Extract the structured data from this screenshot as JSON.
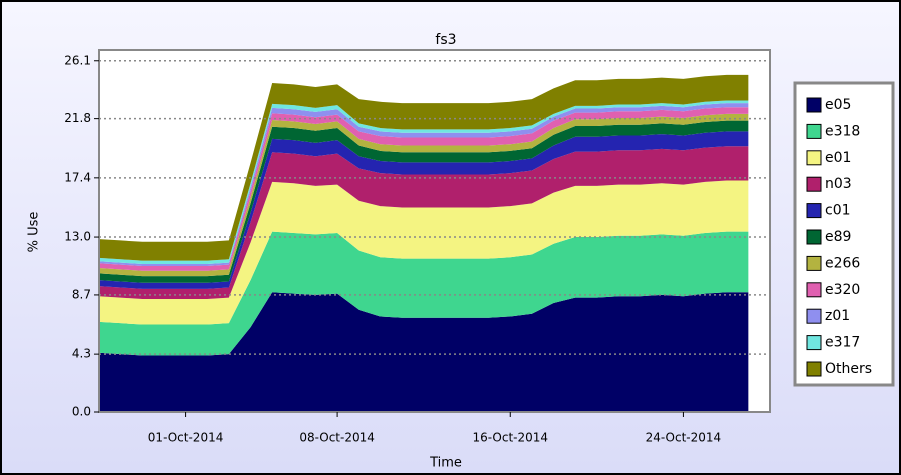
{
  "chart_data": {
    "type": "stacked_area",
    "title": "fs3",
    "xlabel": "Time",
    "ylabel": "% Use",
    "x": [
      "2014-09-27",
      "2014-09-28",
      "2014-09-29",
      "2014-09-30",
      "2014-10-01",
      "2014-10-02",
      "2014-10-03",
      "2014-10-04",
      "2014-10-05",
      "2014-10-06",
      "2014-10-07",
      "2014-10-08",
      "2014-10-09",
      "2014-10-10",
      "2014-10-11",
      "2014-10-12",
      "2014-10-13",
      "2014-10-14",
      "2014-10-15",
      "2014-10-16",
      "2014-10-17",
      "2014-10-18",
      "2014-10-19",
      "2014-10-20",
      "2014-10-21",
      "2014-10-22",
      "2014-10-23",
      "2014-10-24",
      "2014-10-25",
      "2014-10-26",
      "2014-10-27"
    ],
    "xlim": [
      "2014-09-27",
      "2014-10-28"
    ],
    "xticks": [
      {
        "value": "2014-10-01",
        "label": "01-Oct-2014"
      },
      {
        "value": "2014-10-08",
        "label": "08-Oct-2014"
      },
      {
        "value": "2014-10-16",
        "label": "16-Oct-2014"
      },
      {
        "value": "2014-10-24",
        "label": "24-Oct-2014"
      }
    ],
    "ylim": [
      0,
      26.9
    ],
    "yticks": [
      {
        "value": 0,
        "label": "0.0"
      },
      4.3,
      8.7,
      {
        "value": 13,
        "label": "13.0"
      },
      17.4,
      21.8,
      26.1
    ],
    "grid": true,
    "legend": "right",
    "series": [
      {
        "name": "e05",
        "color": "#000066",
        "values": [
          4.4,
          4.3,
          4.2,
          4.2,
          4.2,
          4.2,
          4.3,
          6.3,
          8.9,
          8.8,
          8.7,
          8.8,
          7.6,
          7.1,
          7.0,
          7.0,
          7.0,
          7.0,
          7.0,
          7.1,
          7.3,
          8.1,
          8.5,
          8.5,
          8.6,
          8.6,
          8.7,
          8.6,
          8.8,
          8.9,
          8.9
        ]
      },
      {
        "name": "e318",
        "color": "#3fd68f",
        "values": [
          2.3,
          2.3,
          2.3,
          2.3,
          2.3,
          2.3,
          2.3,
          3.5,
          4.5,
          4.5,
          4.5,
          4.5,
          4.4,
          4.4,
          4.4,
          4.4,
          4.4,
          4.4,
          4.4,
          4.4,
          4.4,
          4.4,
          4.5,
          4.5,
          4.5,
          4.5,
          4.5,
          4.5,
          4.5,
          4.5,
          4.5
        ]
      },
      {
        "name": "e01",
        "color": "#f4f482",
        "values": [
          1.9,
          1.9,
          1.9,
          1.9,
          1.9,
          1.9,
          1.9,
          2.8,
          3.7,
          3.7,
          3.6,
          3.6,
          3.7,
          3.8,
          3.8,
          3.8,
          3.8,
          3.8,
          3.8,
          3.8,
          3.8,
          3.8,
          3.8,
          3.8,
          3.8,
          3.8,
          3.8,
          3.8,
          3.8,
          3.8,
          3.8
        ]
      },
      {
        "name": "n03",
        "color": "#b0206c",
        "values": [
          0.75,
          0.75,
          0.75,
          0.75,
          0.75,
          0.75,
          0.75,
          1.5,
          2.2,
          2.2,
          2.2,
          2.3,
          2.4,
          2.45,
          2.45,
          2.45,
          2.45,
          2.45,
          2.45,
          2.45,
          2.45,
          2.5,
          2.55,
          2.55,
          2.55,
          2.55,
          2.55,
          2.55,
          2.55,
          2.55,
          2.55
        ]
      },
      {
        "name": "c01",
        "color": "#2424b0",
        "values": [
          0.45,
          0.45,
          0.45,
          0.45,
          0.45,
          0.45,
          0.45,
          0.7,
          1.0,
          1.0,
          1.0,
          1.0,
          0.9,
          0.9,
          0.9,
          0.9,
          0.9,
          0.9,
          0.9,
          0.9,
          0.9,
          1.0,
          1.1,
          1.1,
          1.1,
          1.1,
          1.1,
          1.1,
          1.1,
          1.1,
          1.1
        ]
      },
      {
        "name": "e89",
        "color": "#006633",
        "values": [
          0.5,
          0.5,
          0.5,
          0.5,
          0.5,
          0.5,
          0.5,
          0.7,
          0.9,
          0.9,
          0.9,
          0.9,
          0.8,
          0.75,
          0.75,
          0.75,
          0.75,
          0.75,
          0.75,
          0.75,
          0.75,
          0.8,
          0.8,
          0.8,
          0.8,
          0.8,
          0.8,
          0.8,
          0.8,
          0.8,
          0.8
        ]
      },
      {
        "name": "e266",
        "color": "#b3b340",
        "values": [
          0.4,
          0.4,
          0.4,
          0.4,
          0.4,
          0.4,
          0.4,
          0.45,
          0.5,
          0.5,
          0.5,
          0.5,
          0.5,
          0.5,
          0.5,
          0.5,
          0.5,
          0.5,
          0.5,
          0.5,
          0.5,
          0.5,
          0.5,
          0.5,
          0.5,
          0.5,
          0.5,
          0.5,
          0.5,
          0.5,
          0.5
        ]
      },
      {
        "name": "e320",
        "color": "#e060b0",
        "values": [
          0.35,
          0.35,
          0.35,
          0.35,
          0.35,
          0.35,
          0.35,
          0.45,
          0.5,
          0.5,
          0.5,
          0.5,
          0.55,
          0.6,
          0.6,
          0.6,
          0.6,
          0.6,
          0.6,
          0.6,
          0.6,
          0.55,
          0.5,
          0.5,
          0.5,
          0.5,
          0.5,
          0.5,
          0.5,
          0.5,
          0.5
        ]
      },
      {
        "name": "z01",
        "color": "#8f8fef",
        "values": [
          0.15,
          0.15,
          0.15,
          0.15,
          0.15,
          0.15,
          0.15,
          0.3,
          0.4,
          0.4,
          0.4,
          0.4,
          0.35,
          0.35,
          0.35,
          0.35,
          0.35,
          0.35,
          0.35,
          0.35,
          0.35,
          0.3,
          0.3,
          0.3,
          0.3,
          0.3,
          0.3,
          0.3,
          0.3,
          0.3,
          0.3
        ]
      },
      {
        "name": "e317",
        "color": "#70e6e0",
        "values": [
          0.25,
          0.25,
          0.25,
          0.25,
          0.25,
          0.25,
          0.25,
          0.3,
          0.3,
          0.3,
          0.3,
          0.3,
          0.25,
          0.25,
          0.25,
          0.25,
          0.25,
          0.25,
          0.25,
          0.25,
          0.25,
          0.2,
          0.2,
          0.2,
          0.2,
          0.2,
          0.2,
          0.2,
          0.2,
          0.2,
          0.2
        ]
      },
      {
        "name": "Others",
        "color": "#808000",
        "values": [
          1.4,
          1.4,
          1.4,
          1.4,
          1.4,
          1.4,
          1.4,
          1.5,
          1.55,
          1.55,
          1.55,
          1.55,
          1.8,
          1.95,
          1.95,
          1.95,
          1.95,
          1.95,
          1.95,
          1.95,
          1.95,
          1.9,
          1.9,
          1.9,
          1.9,
          1.9,
          1.9,
          1.9,
          1.9,
          1.9,
          1.9
        ]
      }
    ]
  }
}
